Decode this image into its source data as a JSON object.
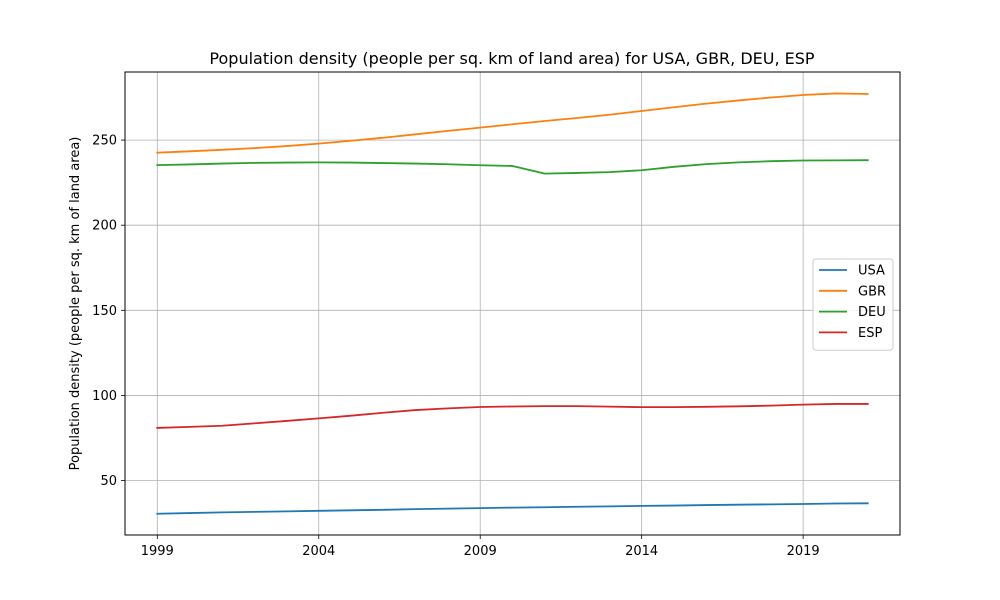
{
  "chart_data": {
    "type": "line",
    "title": "Population density (people per sq. km of land area) for USA, GBR, DEU, ESP",
    "xlabel": "",
    "ylabel": "Population density (people per sq. km of land area)",
    "xlim": [
      1998,
      2022
    ],
    "ylim": [
      18,
      290
    ],
    "xticks": [
      1999,
      2004,
      2009,
      2014,
      2019
    ],
    "yticks": [
      50,
      100,
      150,
      200,
      250
    ],
    "grid": true,
    "legend_position": "center-right",
    "x": [
      1999,
      2000,
      2001,
      2002,
      2003,
      2004,
      2005,
      2006,
      2007,
      2008,
      2009,
      2010,
      2011,
      2012,
      2013,
      2014,
      2015,
      2016,
      2017,
      2018,
      2019,
      2020,
      2021
    ],
    "series": [
      {
        "name": "USA",
        "color": "#1f77b4",
        "values": [
          30.5,
          30.9,
          31.3,
          31.6,
          31.9,
          32.2,
          32.5,
          32.8,
          33.2,
          33.5,
          33.8,
          34.1,
          34.3,
          34.6,
          34.8,
          35.1,
          35.3,
          35.6,
          35.8,
          36.0,
          36.2,
          36.5,
          36.6
        ]
      },
      {
        "name": "GBR",
        "color": "#ff7f0e",
        "values": [
          242.6,
          243.4,
          244.3,
          245.3,
          246.5,
          247.9,
          249.6,
          251.4,
          253.4,
          255.4,
          257.3,
          259.3,
          261.2,
          263.0,
          264.9,
          267.1,
          269.3,
          271.4,
          273.3,
          275.0,
          276.5,
          277.4,
          277.1
        ]
      },
      {
        "name": "DEU",
        "color": "#2ca02c",
        "values": [
          235.3,
          235.7,
          236.2,
          236.6,
          236.8,
          236.9,
          236.8,
          236.5,
          236.2,
          235.8,
          235.2,
          234.8,
          230.3,
          230.7,
          231.2,
          232.3,
          234.3,
          235.9,
          236.9,
          237.6,
          238.0,
          238.1,
          238.2
        ]
      },
      {
        "name": "ESP",
        "color": "#d62728",
        "values": [
          80.9,
          81.5,
          82.2,
          83.6,
          85.0,
          86.5,
          88.1,
          89.8,
          91.4,
          92.4,
          93.2,
          93.5,
          93.7,
          93.7,
          93.4,
          93.1,
          93.1,
          93.3,
          93.6,
          94.0,
          94.6,
          95.0,
          95.0
        ]
      }
    ]
  }
}
